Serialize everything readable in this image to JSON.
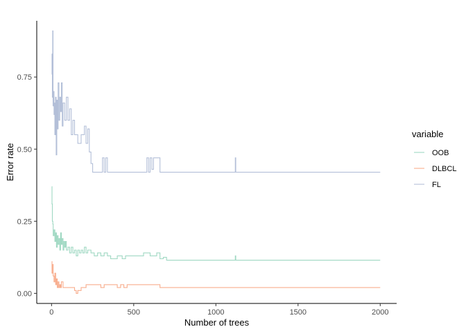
{
  "chart_data": {
    "type": "line",
    "xlabel": "Number of trees",
    "ylabel": "Error rate",
    "xlim": [
      -90,
      2100
    ],
    "ylim": [
      -0.035,
      0.945
    ],
    "x_ticks": [
      0,
      500,
      1000,
      1500,
      2000
    ],
    "y_ticks": [
      0.0,
      0.25,
      0.5,
      0.75
    ],
    "x_tick_labels": [
      "0",
      "500",
      "1000",
      "1500",
      "2000"
    ],
    "y_tick_labels": [
      "0.00",
      "0.25",
      "0.50",
      "0.75"
    ],
    "grid": false,
    "legend": {
      "title": "variable",
      "position": "right"
    },
    "series": [
      {
        "name": "OOB",
        "color": "#9fd8c2",
        "points": [
          [
            1,
            0.37
          ],
          [
            3,
            0.31
          ],
          [
            5,
            0.25
          ],
          [
            8,
            0.24
          ],
          [
            10,
            0.2
          ],
          [
            15,
            0.22
          ],
          [
            20,
            0.18
          ],
          [
            25,
            0.21
          ],
          [
            30,
            0.16
          ],
          [
            35,
            0.2
          ],
          [
            40,
            0.17
          ],
          [
            45,
            0.19
          ],
          [
            50,
            0.15
          ],
          [
            55,
            0.21
          ],
          [
            60,
            0.17
          ],
          [
            65,
            0.19
          ],
          [
            70,
            0.15
          ],
          [
            75,
            0.18
          ],
          [
            80,
            0.16
          ],
          [
            85,
            0.18
          ],
          [
            90,
            0.15
          ],
          [
            100,
            0.16
          ],
          [
            110,
            0.14
          ],
          [
            120,
            0.16
          ],
          [
            130,
            0.14
          ],
          [
            140,
            0.15
          ],
          [
            150,
            0.13
          ],
          [
            160,
            0.15
          ],
          [
            170,
            0.14
          ],
          [
            180,
            0.15
          ],
          [
            190,
            0.14
          ],
          [
            200,
            0.16
          ],
          [
            210,
            0.14
          ],
          [
            220,
            0.15
          ],
          [
            240,
            0.14
          ],
          [
            260,
            0.13
          ],
          [
            280,
            0.14
          ],
          [
            300,
            0.13
          ],
          [
            320,
            0.14
          ],
          [
            340,
            0.13
          ],
          [
            360,
            0.12
          ],
          [
            400,
            0.13
          ],
          [
            430,
            0.12
          ],
          [
            450,
            0.13
          ],
          [
            500,
            0.13
          ],
          [
            560,
            0.14
          ],
          [
            600,
            0.13
          ],
          [
            640,
            0.14
          ],
          [
            660,
            0.12
          ],
          [
            680,
            0.125
          ],
          [
            700,
            0.115
          ],
          [
            1115,
            0.115
          ],
          [
            1118,
            0.13
          ],
          [
            1121,
            0.115
          ],
          [
            2000,
            0.115
          ]
        ]
      },
      {
        "name": "DLBCL",
        "color": "#f8ac8c",
        "points": [
          [
            1,
            0.11
          ],
          [
            3,
            0.07
          ],
          [
            5,
            0.1
          ],
          [
            10,
            0.06
          ],
          [
            15,
            0.04
          ],
          [
            20,
            0.07
          ],
          [
            25,
            0.03
          ],
          [
            30,
            0.05
          ],
          [
            35,
            0.02
          ],
          [
            40,
            0.04
          ],
          [
            45,
            0.02
          ],
          [
            50,
            0.03
          ],
          [
            55,
            0.02
          ],
          [
            60,
            0.04
          ],
          [
            70,
            0.02
          ],
          [
            100,
            0.02
          ],
          [
            140,
            0.01
          ],
          [
            150,
            0.0
          ],
          [
            160,
            0.01
          ],
          [
            180,
            0.02
          ],
          [
            200,
            0.02
          ],
          [
            210,
            0.03
          ],
          [
            300,
            0.02
          ],
          [
            320,
            0.03
          ],
          [
            400,
            0.02
          ],
          [
            420,
            0.03
          ],
          [
            440,
            0.02
          ],
          [
            460,
            0.03
          ],
          [
            640,
            0.03
          ],
          [
            660,
            0.02
          ],
          [
            680,
            0.02
          ],
          [
            700,
            0.02
          ],
          [
            2000,
            0.02
          ]
        ]
      },
      {
        "name": "FL",
        "color": "#b3bfd8",
        "points": [
          [
            1,
            0.83
          ],
          [
            3,
            0.76
          ],
          [
            5,
            0.68
          ],
          [
            7,
            0.91
          ],
          [
            9,
            0.65
          ],
          [
            12,
            0.7
          ],
          [
            15,
            0.62
          ],
          [
            18,
            0.66
          ],
          [
            20,
            0.55
          ],
          [
            24,
            0.68
          ],
          [
            28,
            0.48
          ],
          [
            32,
            0.67
          ],
          [
            36,
            0.57
          ],
          [
            40,
            0.73
          ],
          [
            45,
            0.6
          ],
          [
            50,
            0.68
          ],
          [
            55,
            0.63
          ],
          [
            60,
            0.73
          ],
          [
            65,
            0.58
          ],
          [
            70,
            0.66
          ],
          [
            80,
            0.6
          ],
          [
            90,
            0.68
          ],
          [
            100,
            0.6
          ],
          [
            110,
            0.64
          ],
          [
            120,
            0.55
          ],
          [
            130,
            0.6
          ],
          [
            140,
            0.55
          ],
          [
            150,
            0.55
          ],
          [
            160,
            0.52
          ],
          [
            180,
            0.55
          ],
          [
            200,
            0.58
          ],
          [
            210,
            0.52
          ],
          [
            220,
            0.57
          ],
          [
            230,
            0.49
          ],
          [
            240,
            0.45
          ],
          [
            250,
            0.42
          ],
          [
            300,
            0.42
          ],
          [
            310,
            0.47
          ],
          [
            320,
            0.42
          ],
          [
            330,
            0.47
          ],
          [
            340,
            0.42
          ],
          [
            570,
            0.42
          ],
          [
            580,
            0.47
          ],
          [
            590,
            0.42
          ],
          [
            600,
            0.47
          ],
          [
            610,
            0.43
          ],
          [
            620,
            0.47
          ],
          [
            650,
            0.47
          ],
          [
            660,
            0.42
          ],
          [
            1115,
            0.42
          ],
          [
            1118,
            0.47
          ],
          [
            1121,
            0.42
          ],
          [
            2000,
            0.42
          ]
        ]
      }
    ]
  }
}
